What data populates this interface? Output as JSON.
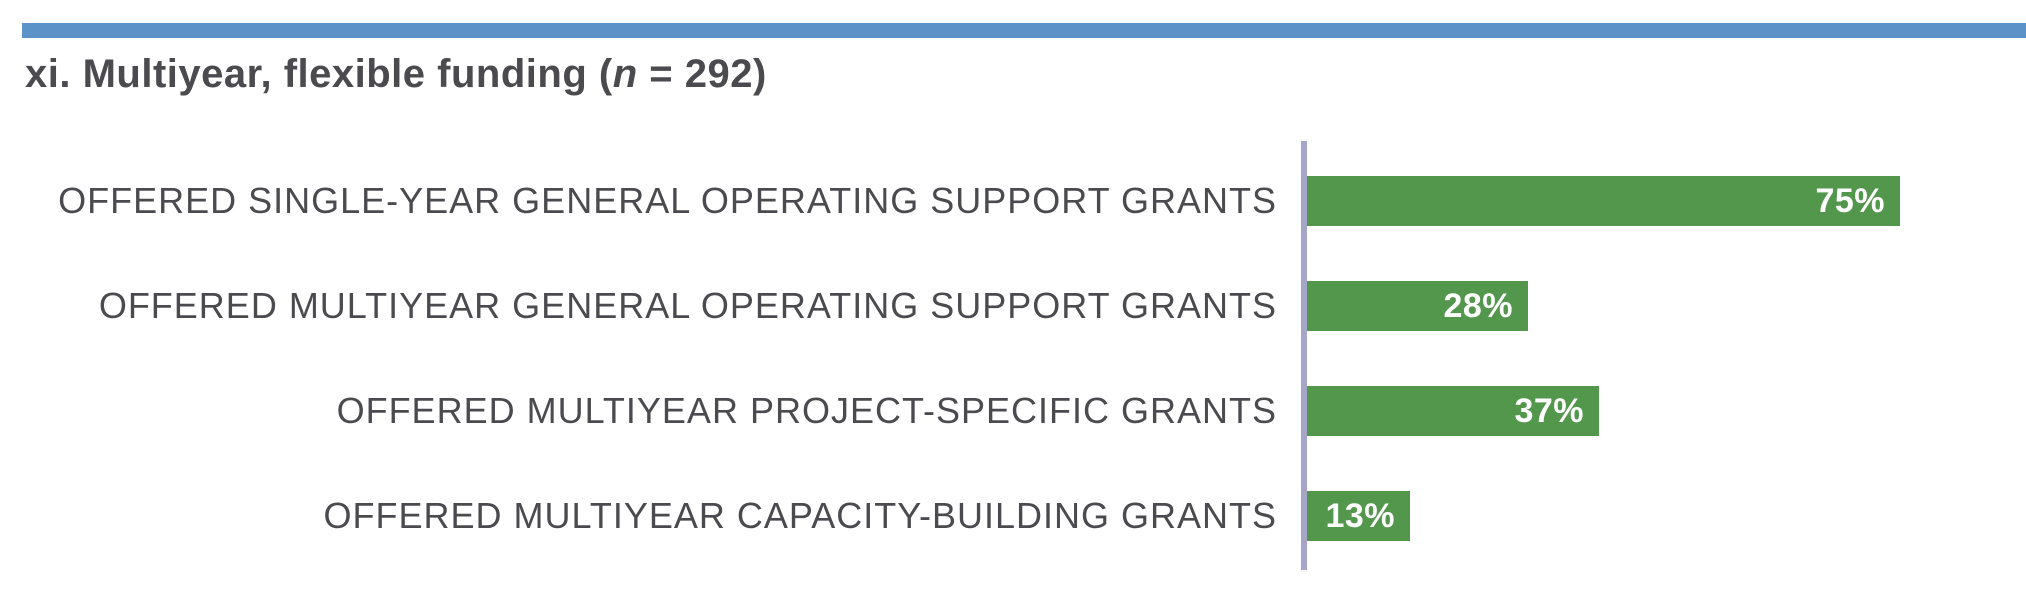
{
  "title": {
    "prefix": "xi. Multiyear, flexible funding (",
    "n": "n",
    "suffix": " = 292)"
  },
  "chart_data": {
    "type": "bar",
    "orientation": "horizontal",
    "title": "xi. Multiyear, flexible funding (n = 292)",
    "n_value": 292,
    "categories": [
      "OFFERED SINGLE-YEAR GENERAL OPERATING SUPPORT GRANTS",
      "OFFERED MULTIYEAR GENERAL OPERATING SUPPORT GRANTS",
      "OFFERED MULTIYEAR PROJECT-SPECIFIC GRANTS",
      "OFFERED MULTIYEAR CAPACITY-BUILDING GRANTS"
    ],
    "values": [
      75,
      28,
      37,
      13
    ],
    "value_labels": [
      "75%",
      "28%",
      "37%",
      "13%"
    ],
    "xlabel": "",
    "ylabel": "",
    "xlim": [
      0,
      100
    ],
    "grid": false,
    "legend": false,
    "value_label_position": "inside-end",
    "colors": {
      "bar": "#53974d",
      "axis_line": "#a6a6c9",
      "top_rule": "#5b92c7",
      "text": "#4a4a4f",
      "value_label": "#ffffff"
    }
  }
}
